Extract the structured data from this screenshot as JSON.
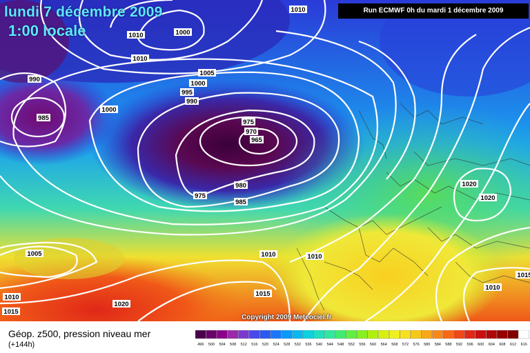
{
  "header": {
    "date": "lundi 7 décembre 2009",
    "time": "1:00 locale",
    "run": "Run ECMWF 0h du mardi 1 décembre 2009"
  },
  "copyright": "Copyright 2009 Meteociel.fr",
  "legend": {
    "title": "Géop. z500, pression niveau mer",
    "subtitle": "(+144h)",
    "scale_values": [
      "496",
      "500",
      "504",
      "508",
      "512",
      "516",
      "520",
      "524",
      "528",
      "532",
      "536",
      "540",
      "544",
      "548",
      "552",
      "556",
      "560",
      "564",
      "568",
      "572",
      "576",
      "580",
      "584",
      "588",
      "592",
      "596",
      "600",
      "604",
      "608",
      "612",
      "616"
    ],
    "scale_colors": [
      "#4a004a",
      "#6a006a",
      "#8a008a",
      "#9a2aa8",
      "#7a3ad0",
      "#4a4ae8",
      "#2a58f0",
      "#1a78f8",
      "#0a9af8",
      "#08b8f0",
      "#10d0e0",
      "#20e0c0",
      "#30e8a0",
      "#40ec70",
      "#60f040",
      "#88f020",
      "#b0f010",
      "#d8f010",
      "#f0f020",
      "#f8e020",
      "#f8c818",
      "#f8a818",
      "#f88818",
      "#f86818",
      "#f04818",
      "#e02818",
      "#c81010",
      "#b00808",
      "#980000",
      "#800000",
      "#ffffff"
    ]
  },
  "isobar_labels": [
    {
      "text": "1010",
      "id": "p1010-top-center"
    },
    {
      "text": "1000",
      "id": "p1000-top-left"
    },
    {
      "text": "1010",
      "id": "p1010-greenland-a"
    },
    {
      "text": "1000",
      "id": "p1000-greenland"
    },
    {
      "text": "1010",
      "id": "p1010-greenland-b"
    },
    {
      "text": "1005",
      "id": "p1005-center-north"
    },
    {
      "text": "1000",
      "id": "p1000-center-north"
    },
    {
      "text": "995",
      "id": "p995-center-north"
    },
    {
      "text": "990",
      "id": "p990-center-north"
    },
    {
      "text": "990",
      "id": "p990-west"
    },
    {
      "text": "985",
      "id": "p985-west-low"
    },
    {
      "text": "975",
      "id": "p975-main-low"
    },
    {
      "text": "970",
      "id": "p970-main-low"
    },
    {
      "text": "965",
      "id": "p965-main-low"
    },
    {
      "text": "975",
      "id": "p975-south"
    },
    {
      "text": "980",
      "id": "p980-south"
    },
    {
      "text": "985",
      "id": "p985-south"
    },
    {
      "text": "1005",
      "id": "p1005-southwest"
    },
    {
      "text": "1010",
      "id": "p1010-southwest"
    },
    {
      "text": "1015",
      "id": "p1015-southwest"
    },
    {
      "text": "1020",
      "id": "p1020-south"
    },
    {
      "text": "1015",
      "id": "p1015-iberia"
    },
    {
      "text": "1010",
      "id": "p1010-biscay"
    },
    {
      "text": "1010",
      "id": "p1010-france"
    },
    {
      "text": "1020",
      "id": "p1020-east-a"
    },
    {
      "text": "1020",
      "id": "p1020-east-b"
    },
    {
      "text": "1010",
      "id": "p1010-east-low"
    },
    {
      "text": "1015",
      "id": "p1015-east-edge"
    }
  ]
}
